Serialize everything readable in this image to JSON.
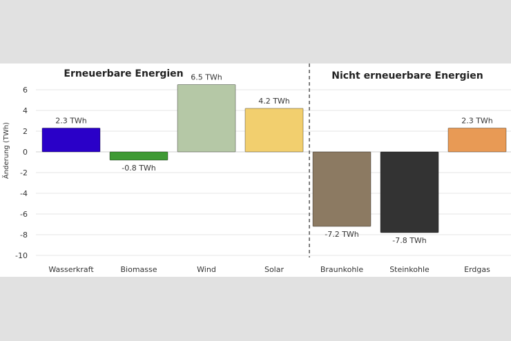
{
  "chart_data": {
    "type": "bar",
    "ylabel": "Änderung (TWh)",
    "ylim": [
      -10,
      6
    ],
    "yticks": [
      6,
      4,
      2,
      0,
      -2,
      -4,
      -6,
      -8,
      -10
    ],
    "grid": true,
    "groups": [
      {
        "title": "Erneuerbare Energien",
        "categories": [
          "Wasserkraft",
          "Biomasse",
          "Wind",
          "Solar"
        ]
      },
      {
        "title": "Nicht erneuerbare Energien",
        "categories": [
          "Braunkohle",
          "Steinkohle",
          "Erdgas"
        ]
      }
    ],
    "categories": [
      "Wasserkraft",
      "Biomasse",
      "Wind",
      "Solar",
      "Braunkohle",
      "Steinkohle",
      "Erdgas"
    ],
    "values": [
      2.3,
      -0.8,
      6.5,
      4.2,
      -7.2,
      -7.8,
      2.3
    ],
    "data_labels": [
      "2.3 TWh",
      "-0.8 TWh",
      "6.5 TWh",
      "4.2 TWh",
      "-7.2 TWh",
      "-7.8 TWh",
      "2.3 TWh"
    ],
    "colors": [
      "#2a00c8",
      "#3f9a34",
      "#b5c8a6",
      "#f2cf6e",
      "#8c7a62",
      "#333333",
      "#e89a55"
    ]
  }
}
